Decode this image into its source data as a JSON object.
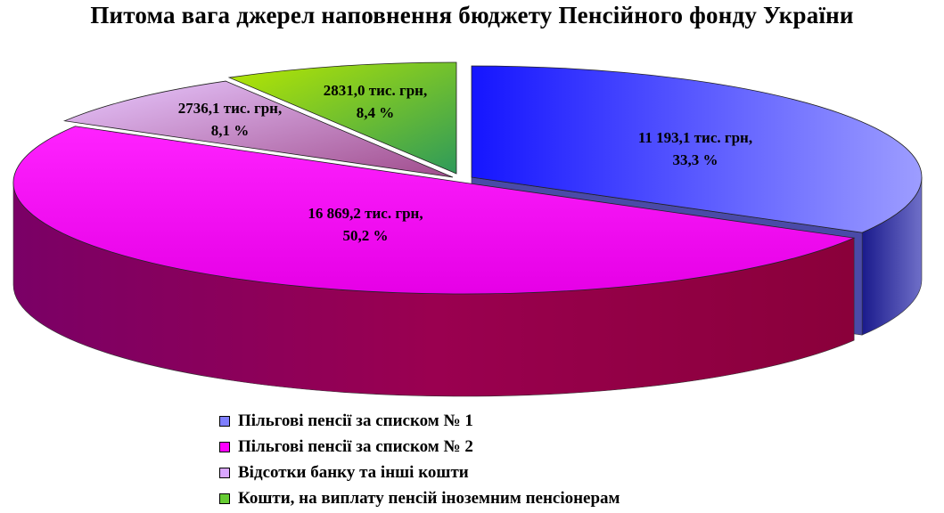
{
  "chart_data": {
    "type": "pie",
    "title": "Питома вага джерел наповнення бюджету Пенсійного фонду України",
    "slices": [
      {
        "name": "Пільгові пенсії за списком № 1",
        "value": 11193.1,
        "value_label": "11 193,1 тис. грн,",
        "percent_label": "33,3 %",
        "color": "#7f7fff"
      },
      {
        "name": "Пільгові пенсії за списком № 2",
        "value": 16869.2,
        "value_label": "16 869,2 тис. грн,",
        "percent_label": "50,2 %",
        "color": "#ff00ff"
      },
      {
        "name": "Відсотки банку та інші кошти",
        "value": 2736.1,
        "value_label": "2736,1 тис. грн,",
        "percent_label": "8,1 %",
        "color": "#d9a6ff"
      },
      {
        "name": "Кошти, на виплату пенсій іноземним пенсіонерам",
        "value": 2831.0,
        "value_label": "2831,0 тис. грн,",
        "percent_label": "8,4 %",
        "color": "#66cc33"
      }
    ],
    "legend_position": "bottom"
  }
}
